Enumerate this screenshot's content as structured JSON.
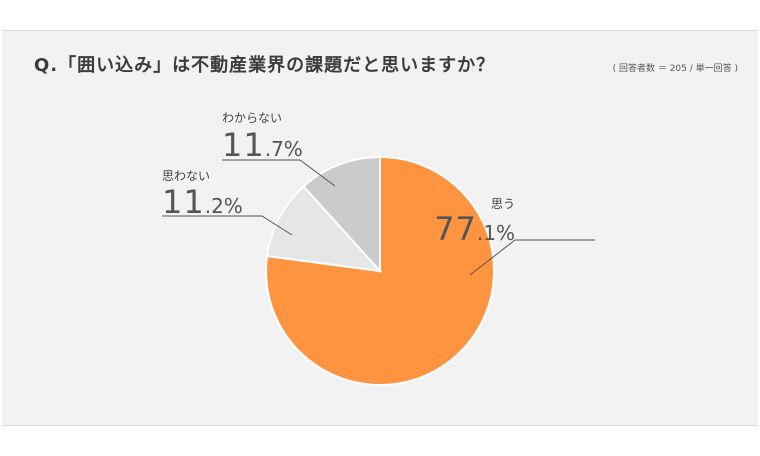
{
  "title": "Q.「囲い込み」は不動産業界の課題だと思いますか？",
  "note": "( 回答者数 ＝ 205 / 単一回答 )",
  "chart_data": {
    "type": "pie",
    "title": "Q.「囲い込み」は不動産業界の課題だと思いますか？",
    "slices": [
      {
        "label": "思う",
        "value": 77.1,
        "int": "77",
        "dec": ".1%",
        "color": "#ff9440"
      },
      {
        "label": "思わない",
        "value": 11.2,
        "int": "11",
        "dec": ".2%",
        "color": "#e6e6e6"
      },
      {
        "label": "わからない",
        "value": 11.7,
        "int": "11",
        "dec": ".7%",
        "color": "#cbcbcb"
      }
    ],
    "start": "12 o'clock",
    "direction": "clockwise"
  }
}
